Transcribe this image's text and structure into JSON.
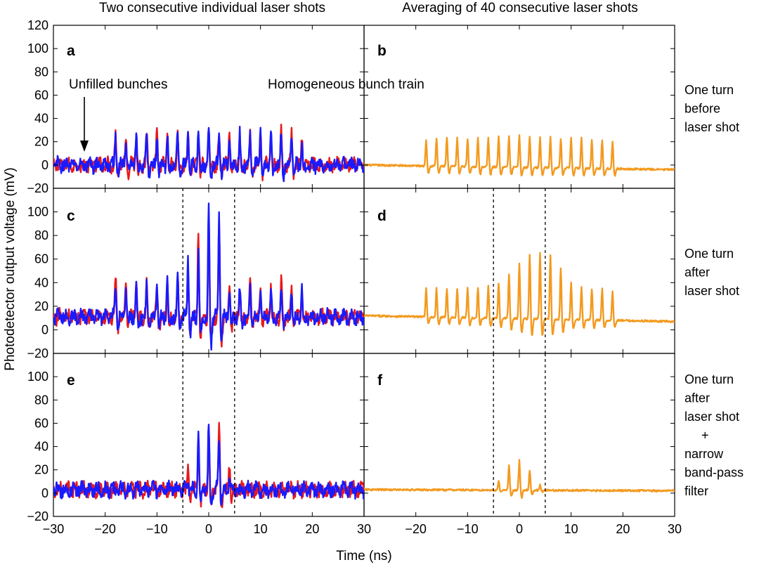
{
  "column_titles": [
    "Two consecutive individual laser shots",
    "Averaging of 40 consecutive laser shots"
  ],
  "row_labels": [
    [
      "One turn",
      "before",
      "laser shot"
    ],
    [
      "One turn",
      "after",
      "laser shot"
    ],
    [
      "One turn",
      "after",
      "laser shot",
      "+",
      "narrow",
      "band-pass",
      "filter"
    ]
  ],
  "annotations": {
    "unfilled": "Unfilled bunches",
    "homogeneous": "Homogeneous bunch train"
  },
  "xlabel": "Time (ns)",
  "ylabel": "Photodetector output voltage (mV)",
  "x_ticks": [
    -30,
    -20,
    -10,
    0,
    10,
    20,
    30
  ],
  "x_tick_labels": [
    "−30",
    "−20",
    "−10",
    "0",
    "10",
    "20",
    "30"
  ],
  "x_tick_labels_right": [
    "",
    "−20",
    "−10",
    "0",
    "10",
    "20",
    "30"
  ],
  "y_ticks_top": [
    -20,
    0,
    20,
    40,
    60,
    80,
    100,
    120
  ],
  "y_tick_labels_top": [
    "−20",
    "0",
    "20",
    "40",
    "60",
    "80",
    "100",
    "120"
  ],
  "y_ticks_lower": [
    -20,
    0,
    20,
    40,
    60,
    80,
    100
  ],
  "y_tick_labels_lower": [
    "−20",
    "0",
    "20",
    "40",
    "60",
    "80",
    "100"
  ],
  "colors": {
    "shot1": "#e8191b",
    "shot2": "#1a1aff",
    "average": "#f39a1f",
    "frame": "#000000"
  },
  "chart_data": [
    {
      "panel": "a",
      "type": "line",
      "xlim": [
        -30,
        30
      ],
      "ylim": [
        -20,
        120
      ],
      "bunch_times_ns": [
        -18,
        -16,
        -14,
        -12,
        -10,
        -8,
        -6,
        -4,
        -2,
        0,
        2,
        4,
        6,
        8,
        10,
        12,
        14,
        16,
        18
      ],
      "baseline": 0,
      "noise_amplitude": 5,
      "series": [
        {
          "color": "red",
          "peaks": [
            28,
            27,
            27,
            27,
            28,
            27,
            28,
            27,
            28,
            27,
            28,
            27,
            28,
            27,
            28,
            27,
            29,
            28,
            26
          ]
        },
        {
          "color": "blue",
          "peaks": [
            26,
            26,
            26,
            26,
            27,
            26,
            28,
            27,
            30,
            27,
            28,
            23,
            27,
            26,
            31,
            28,
            26,
            26,
            22
          ]
        }
      ]
    },
    {
      "panel": "b",
      "type": "line",
      "xlim": [
        -30,
        30
      ],
      "ylim": [
        -20,
        120
      ],
      "bunch_times_ns": [
        -18,
        -16,
        -14,
        -12,
        -10,
        -8,
        -6,
        -4,
        -2,
        0,
        2,
        4,
        6,
        8,
        10,
        12,
        14,
        16,
        18
      ],
      "baseline_start": 0,
      "baseline_end": -4,
      "series": [
        {
          "color": "orange",
          "peaks": [
            22,
            23,
            24,
            23,
            23,
            24,
            24,
            25,
            25,
            26,
            25,
            24,
            24,
            23,
            23,
            23,
            22,
            22,
            21
          ]
        }
      ]
    },
    {
      "panel": "c",
      "type": "line",
      "xlim": [
        -30,
        30
      ],
      "ylim": [
        -20,
        120
      ],
      "bunch_times_ns": [
        -18,
        -16,
        -14,
        -12,
        -10,
        -8,
        -6,
        -4,
        -2,
        0,
        2,
        4,
        6,
        8,
        10,
        12,
        14,
        16,
        18
      ],
      "baseline": 11,
      "noise_amplitude": 5,
      "dashed_lines_ns": [
        -5,
        5
      ],
      "series": [
        {
          "color": "red",
          "peaks": [
            45,
            39,
            40,
            40,
            40,
            45,
            43,
            47,
            87,
            92,
            95,
            40,
            39,
            40,
            38,
            38,
            42,
            38,
            35
          ]
        },
        {
          "color": "blue",
          "peaks": [
            36,
            37,
            38,
            38,
            40,
            40,
            43,
            64,
            65,
            105,
            98,
            37,
            34,
            35,
            34,
            35,
            35,
            35,
            38
          ]
        }
      ]
    },
    {
      "panel": "d",
      "type": "line",
      "xlim": [
        -30,
        30
      ],
      "ylim": [
        -20,
        120
      ],
      "bunch_times_ns": [
        -18,
        -16,
        -14,
        -12,
        -10,
        -8,
        -6,
        -4,
        -2,
        0,
        2,
        4,
        6,
        8,
        10,
        12,
        14,
        16,
        18
      ],
      "baseline_start": 12,
      "baseline_end": 7,
      "dashed_lines_ns": [
        -5,
        5
      ],
      "series": [
        {
          "color": "orange",
          "peaks": [
            35,
            35,
            35,
            35,
            36,
            36,
            37,
            40,
            48,
            57,
            64,
            66,
            64,
            53,
            40,
            36,
            35,
            35,
            33
          ]
        }
      ]
    },
    {
      "panel": "e",
      "type": "line",
      "xlim": [
        -30,
        30
      ],
      "ylim": [
        -20,
        120
      ],
      "bunch_times_ns": [
        -4,
        -2,
        0,
        2,
        4
      ],
      "baseline": 3,
      "noise_amplitude": 5,
      "dashed_lines_ns": [
        -5,
        5
      ],
      "series": [
        {
          "color": "red",
          "peaks": [
            18,
            47,
            57,
            57,
            25
          ]
        },
        {
          "color": "blue",
          "peaks": [
            12,
            54,
            59,
            50,
            12
          ]
        }
      ]
    },
    {
      "panel": "f",
      "type": "line",
      "xlim": [
        -30,
        30
      ],
      "ylim": [
        -20,
        120
      ],
      "bunch_times_ns": [
        -4,
        -2,
        0,
        2,
        4
      ],
      "baseline_start": 3,
      "baseline_end": 2,
      "dashed_lines_ns": [
        -5,
        5
      ],
      "series": [
        {
          "color": "orange",
          "peaks": [
            10,
            24,
            28,
            19,
            7
          ]
        }
      ]
    }
  ]
}
